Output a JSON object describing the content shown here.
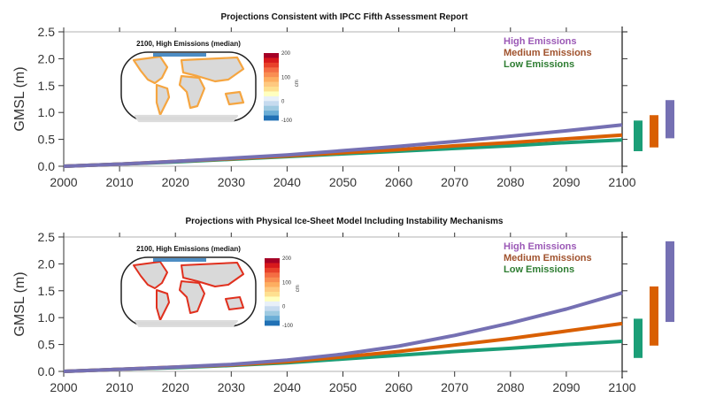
{
  "chart_data": [
    {
      "type": "line",
      "title": "Projections Consistent with IPCC Fifth Assessment Report",
      "xlabel": "",
      "ylabel": "GMSL (m)",
      "xlim": [
        2000,
        2100
      ],
      "ylim": [
        0,
        2.5
      ],
      "xticks": [
        "2000",
        "2010",
        "2020",
        "2030",
        "2040",
        "2050",
        "2060",
        "2070",
        "2080",
        "2090",
        "2100"
      ],
      "yticks": [
        "0.0",
        "0.5",
        "1.0",
        "1.5",
        "2.0",
        "2.5"
      ],
      "grid": false,
      "legend_position": "top-right",
      "x": [
        2000,
        2010,
        2020,
        2030,
        2040,
        2050,
        2060,
        2070,
        2080,
        2090,
        2100
      ],
      "series": [
        {
          "name": "High Emissions",
          "color": "#7570b3",
          "values": [
            0.0,
            0.04,
            0.09,
            0.15,
            0.21,
            0.29,
            0.37,
            0.46,
            0.56,
            0.66,
            0.77
          ]
        },
        {
          "name": "Medium Emissions",
          "color": "#d95f02",
          "values": [
            0.0,
            0.04,
            0.09,
            0.14,
            0.19,
            0.25,
            0.31,
            0.38,
            0.44,
            0.51,
            0.58
          ]
        },
        {
          "name": "Low Emissions",
          "color": "#1b9e77",
          "values": [
            0.0,
            0.04,
            0.08,
            0.13,
            0.18,
            0.23,
            0.28,
            0.33,
            0.38,
            0.44,
            0.49
          ]
        }
      ],
      "ranges_2100": [
        {
          "name": "Low Emissions",
          "color": "#1b9e77",
          "low": 0.28,
          "high": 0.85
        },
        {
          "name": "Medium Emissions",
          "color": "#d95f02",
          "low": 0.35,
          "high": 0.95
        },
        {
          "name": "High Emissions",
          "color": "#7570b3",
          "low": 0.52,
          "high": 1.23
        }
      ],
      "legend_colors": [
        "#9b59b6",
        "#a0522d",
        "#2e7d32"
      ],
      "inset": {
        "title": "2100, High Emissions (median)",
        "colorbar_ticks": [
          "200",
          "100",
          "0",
          "-100"
        ],
        "colorbar_unit": "cm",
        "dominant_coast_color": "#f5a540"
      }
    },
    {
      "type": "line",
      "title": "Projections with Physical Ice-Sheet Model Including Instability Mechanisms",
      "xlabel": "",
      "ylabel": "GMSL (m)",
      "xlim": [
        2000,
        2100
      ],
      "ylim": [
        0,
        2.5
      ],
      "xticks": [
        "2000",
        "2010",
        "2020",
        "2030",
        "2040",
        "2050",
        "2060",
        "2070",
        "2080",
        "2090",
        "2100"
      ],
      "yticks": [
        "0.0",
        "0.5",
        "1.0",
        "1.5",
        "2.0",
        "2.5"
      ],
      "grid": false,
      "legend_position": "top-right",
      "x": [
        2000,
        2010,
        2020,
        2030,
        2040,
        2050,
        2060,
        2070,
        2080,
        2090,
        2100
      ],
      "series": [
        {
          "name": "High Emissions",
          "color": "#7570b3",
          "values": [
            0.0,
            0.04,
            0.08,
            0.13,
            0.21,
            0.32,
            0.47,
            0.67,
            0.9,
            1.16,
            1.46
          ]
        },
        {
          "name": "Medium Emissions",
          "color": "#d95f02",
          "values": [
            0.0,
            0.04,
            0.08,
            0.12,
            0.18,
            0.27,
            0.37,
            0.49,
            0.61,
            0.75,
            0.89
          ]
        },
        {
          "name": "Low Emissions",
          "color": "#1b9e77",
          "values": [
            0.0,
            0.04,
            0.07,
            0.11,
            0.16,
            0.23,
            0.3,
            0.37,
            0.43,
            0.5,
            0.56
          ]
        }
      ],
      "ranges_2100": [
        {
          "name": "Low Emissions",
          "color": "#1b9e77",
          "low": 0.25,
          "high": 0.98
        },
        {
          "name": "Medium Emissions",
          "color": "#d95f02",
          "low": 0.48,
          "high": 1.58
        },
        {
          "name": "High Emissions",
          "color": "#7570b3",
          "low": 0.92,
          "high": 2.42
        }
      ],
      "legend_colors": [
        "#9b59b6",
        "#a0522d",
        "#2e7d32"
      ],
      "inset": {
        "title": "2100, High Emissions (median)",
        "colorbar_ticks": [
          "200",
          "100",
          "0",
          "-100"
        ],
        "colorbar_unit": "cm",
        "dominant_coast_color": "#e0301e"
      }
    }
  ],
  "colorbar_colors": [
    "#a50026",
    "#d7191c",
    "#e8412a",
    "#f46d43",
    "#f98e52",
    "#fdae61",
    "#fec980",
    "#fee090",
    "#ffffbf",
    "#e8f0f8",
    "#c6dbef",
    "#9ecae1",
    "#6baed6",
    "#2171b5"
  ]
}
